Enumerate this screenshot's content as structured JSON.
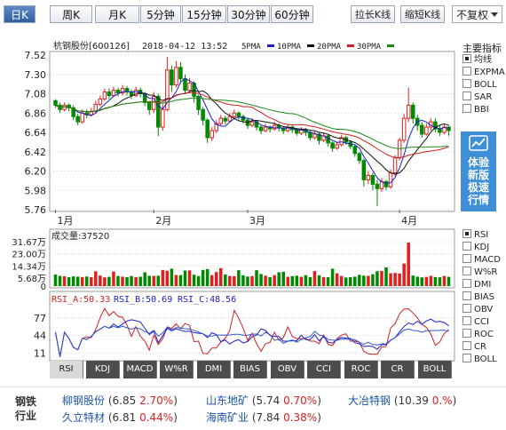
{
  "period_tabs": [
    {
      "label": "日K",
      "active": true
    },
    {
      "label": "周K",
      "active": false
    },
    {
      "label": "月K",
      "active": false
    },
    {
      "label": "5分钟",
      "active": false
    },
    {
      "label": "15分钟",
      "active": false
    },
    {
      "label": "30分钟",
      "active": false
    },
    {
      "label": "60分钟",
      "active": false
    }
  ],
  "tools": {
    "stretch": "拉长K线",
    "shrink": "缩短K线",
    "adjust": "不复权"
  },
  "header": {
    "name": "杭钢股份[600126]",
    "datetime": "2018-04-12 13:52",
    "ma": [
      {
        "label": "5PMA",
        "color": "#2a2a9a"
      },
      {
        "label": "10PMA",
        "color": "#2a2a9a"
      },
      {
        "label": "20PMA",
        "color": "#111111"
      },
      {
        "label": "30PMA",
        "color": "#c00000"
      }
    ]
  },
  "colors": {
    "up": "#e02020",
    "down": "#008a00",
    "ma5": "#1d1dcc",
    "ma10": "#111111",
    "ma20": "#d02020",
    "ma30": "#1a8a1a",
    "accent": "#3f8fd8"
  },
  "side": {
    "main_title": "主要指标",
    "main_items": [
      {
        "label": "均线",
        "checked": true
      },
      {
        "label": "EXPMA",
        "checked": false
      },
      {
        "label": "BOLL",
        "checked": false
      },
      {
        "label": "SAR",
        "checked": false
      },
      {
        "label": "BBI",
        "checked": false
      }
    ],
    "promo_lines": [
      "体验",
      "新版",
      "极速",
      "行情"
    ],
    "sub_items": [
      {
        "label": "RSI",
        "checked": true
      },
      {
        "label": "KDJ",
        "checked": false
      },
      {
        "label": "MACD",
        "checked": false
      },
      {
        "label": "W%R",
        "checked": false
      },
      {
        "label": "DMI",
        "checked": false
      },
      {
        "label": "BIAS",
        "checked": false
      },
      {
        "label": "OBV",
        "checked": false
      },
      {
        "label": "CCI",
        "checked": false
      },
      {
        "label": "ROC",
        "checked": false
      },
      {
        "label": "CR",
        "checked": false
      },
      {
        "label": "BOLL",
        "checked": false
      }
    ]
  },
  "indicator_tabs": [
    {
      "label": "RSI",
      "active": true
    },
    {
      "label": "KDJ",
      "active": false
    },
    {
      "label": "MACD",
      "active": false
    },
    {
      "label": "W%R",
      "active": false
    },
    {
      "label": "DMI",
      "active": false
    },
    {
      "label": "BIAS",
      "active": false
    },
    {
      "label": "OBV",
      "active": false
    },
    {
      "label": "CCI",
      "active": false
    },
    {
      "label": "ROC",
      "active": false
    },
    {
      "label": "CR",
      "active": false
    },
    {
      "label": "BOLL",
      "active": false
    }
  ],
  "industry": {
    "label": "钢铁行业",
    "peers": [
      {
        "name": "柳钢股份",
        "price": "6.85",
        "change": "2.70%"
      },
      {
        "name": "山东地矿",
        "price": "5.74",
        "change": "0.70%"
      },
      {
        "name": "大冶特钢",
        "price": "10.39",
        "change": "0.%"
      },
      {
        "name": "久立特材",
        "price": "6.81",
        "change": "0.44%"
      },
      {
        "name": "海南矿业",
        "price": "7.84",
        "change": "0.38%"
      }
    ]
  },
  "chart_data": {
    "type": "candlestick",
    "price_ticks": [
      "7.52",
      "7.30",
      "7.08",
      "6.86",
      "6.64",
      "6.42",
      "6.20",
      "5.98",
      "5.76"
    ],
    "price_range": [
      5.76,
      7.52
    ],
    "month_labels": [
      {
        "label": "1月",
        "index": 0
      },
      {
        "label": "2月",
        "index": 22
      },
      {
        "label": "3月",
        "index": 43
      },
      {
        "label": "4月",
        "index": 77
      }
    ],
    "candles": [
      [
        7.0,
        6.95,
        7.02,
        6.92
      ],
      [
        6.95,
        6.9,
        6.98,
        6.86
      ],
      [
        6.9,
        6.95,
        6.98,
        6.88
      ],
      [
        6.95,
        6.92,
        6.97,
        6.88
      ],
      [
        6.92,
        6.82,
        6.95,
        6.78
      ],
      [
        6.82,
        6.76,
        6.85,
        6.72
      ],
      [
        6.76,
        6.86,
        6.9,
        6.74
      ],
      [
        6.86,
        6.84,
        6.9,
        6.8
      ],
      [
        6.84,
        6.88,
        6.92,
        6.82
      ],
      [
        6.88,
        6.96,
        7.0,
        6.86
      ],
      [
        6.96,
        7.02,
        7.06,
        6.94
      ],
      [
        7.02,
        7.1,
        7.14,
        7.0
      ],
      [
        7.1,
        7.06,
        7.14,
        7.02
      ],
      [
        7.06,
        7.12,
        7.16,
        7.04
      ],
      [
        7.12,
        7.09,
        7.15,
        7.05
      ],
      [
        7.09,
        7.14,
        7.18,
        7.06
      ],
      [
        7.14,
        7.1,
        7.17,
        7.06
      ],
      [
        7.1,
        7.06,
        7.13,
        7.02
      ],
      [
        7.06,
        7.12,
        7.16,
        7.04
      ],
      [
        7.12,
        7.08,
        7.15,
        7.04
      ],
      [
        7.08,
        6.98,
        7.1,
        6.94
      ],
      [
        6.98,
        6.9,
        7.0,
        6.84
      ],
      [
        6.9,
        7.05,
        7.1,
        6.86
      ],
      [
        7.05,
        6.7,
        7.08,
        6.6
      ],
      [
        6.7,
        6.9,
        6.96,
        6.66
      ],
      [
        6.9,
        7.35,
        7.5,
        6.88
      ],
      [
        7.35,
        7.18,
        7.4,
        7.1
      ],
      [
        7.18,
        7.38,
        7.45,
        7.15
      ],
      [
        7.38,
        7.25,
        7.44,
        7.2
      ],
      [
        7.25,
        7.12,
        7.3,
        7.08
      ],
      [
        7.12,
        7.2,
        7.26,
        7.1
      ],
      [
        7.2,
        7.05,
        7.22,
        6.98
      ],
      [
        7.05,
        6.9,
        7.07,
        6.84
      ],
      [
        6.9,
        6.78,
        6.93,
        6.72
      ],
      [
        6.78,
        6.58,
        6.8,
        6.52
      ],
      [
        6.58,
        6.66,
        6.7,
        6.54
      ],
      [
        6.66,
        6.74,
        6.78,
        6.63
      ],
      [
        6.74,
        6.8,
        6.84,
        6.72
      ],
      [
        6.8,
        6.77,
        6.83,
        6.73
      ],
      [
        6.77,
        6.82,
        6.86,
        6.75
      ],
      [
        6.82,
        6.86,
        6.9,
        6.8
      ],
      [
        6.86,
        6.82,
        6.88,
        6.78
      ],
      [
        6.82,
        6.78,
        6.84,
        6.74
      ],
      [
        6.78,
        6.72,
        6.8,
        6.68
      ],
      [
        6.72,
        6.76,
        6.8,
        6.7
      ],
      [
        6.76,
        6.7,
        6.78,
        6.66
      ],
      [
        6.7,
        6.66,
        6.72,
        6.62
      ],
      [
        6.66,
        6.7,
        6.74,
        6.64
      ],
      [
        6.7,
        6.68,
        6.72,
        6.64
      ],
      [
        6.68,
        6.72,
        6.76,
        6.66
      ],
      [
        6.72,
        6.69,
        6.74,
        6.65
      ],
      [
        6.69,
        6.66,
        6.71,
        6.62
      ],
      [
        6.66,
        6.7,
        6.73,
        6.64
      ],
      [
        6.7,
        6.67,
        6.72,
        6.63
      ],
      [
        6.67,
        6.63,
        6.69,
        6.6
      ],
      [
        6.63,
        6.67,
        6.7,
        6.61
      ],
      [
        6.67,
        6.64,
        6.69,
        6.6
      ],
      [
        6.64,
        6.58,
        6.66,
        6.55
      ],
      [
        6.58,
        6.62,
        6.65,
        6.56
      ],
      [
        6.62,
        6.55,
        6.64,
        6.5
      ],
      [
        6.55,
        6.6,
        6.63,
        6.53
      ],
      [
        6.6,
        6.52,
        6.62,
        6.48
      ],
      [
        6.52,
        6.46,
        6.54,
        6.42
      ],
      [
        6.46,
        6.5,
        6.53,
        6.44
      ],
      [
        6.5,
        6.58,
        6.61,
        6.48
      ],
      [
        6.58,
        6.53,
        6.6,
        6.5
      ],
      [
        6.53,
        6.48,
        6.55,
        6.45
      ],
      [
        6.48,
        6.4,
        6.5,
        6.36
      ],
      [
        6.4,
        6.32,
        6.42,
        6.28
      ],
      [
        6.32,
        6.1,
        6.34,
        6.02
      ],
      [
        6.1,
        6.15,
        6.2,
        6.05
      ],
      [
        6.15,
        6.05,
        6.18,
        5.98
      ],
      [
        6.05,
        6.0,
        6.1,
        5.8
      ],
      [
        6.0,
        6.08,
        6.12,
        5.96
      ],
      [
        6.08,
        6.02,
        6.1,
        5.98
      ],
      [
        6.02,
        6.18,
        6.22,
        6.0
      ],
      [
        6.18,
        6.35,
        6.38,
        6.14
      ],
      [
        6.35,
        6.55,
        6.58,
        6.32
      ],
      [
        6.55,
        6.8,
        6.85,
        6.52
      ],
      [
        6.8,
        6.95,
        7.15,
        6.76
      ],
      [
        6.95,
        6.8,
        6.98,
        6.74
      ],
      [
        6.8,
        6.72,
        6.84,
        6.66
      ],
      [
        6.72,
        6.62,
        6.76,
        6.58
      ],
      [
        6.62,
        6.7,
        6.74,
        6.6
      ],
      [
        6.7,
        6.76,
        6.8,
        6.66
      ],
      [
        6.76,
        6.68,
        6.8,
        6.64
      ],
      [
        6.68,
        6.64,
        6.72,
        6.6
      ],
      [
        6.64,
        6.7,
        6.74,
        6.62
      ],
      [
        6.7,
        6.66,
        6.72,
        6.6
      ]
    ],
    "volume": {
      "label": "成交量:37520",
      "ticks": [
        "31.67万",
        "23.00万",
        "14.34万",
        "5.68万",
        "0"
      ],
      "max": 316700,
      "values": [
        82000,
        73000,
        70000,
        63000,
        69000,
        67000,
        64000,
        68000,
        63000,
        105000,
        75000,
        62000,
        66000,
        104000,
        72000,
        67000,
        64000,
        72000,
        64000,
        67000,
        98000,
        73000,
        72000,
        74000,
        115000,
        109000,
        124000,
        79000,
        78000,
        111000,
        112000,
        81000,
        71000,
        115000,
        121000,
        78000,
        100000,
        128000,
        83000,
        72000,
        70000,
        113000,
        77000,
        68000,
        71000,
        113000,
        86000,
        74000,
        63000,
        78000,
        98000,
        102000,
        66000,
        71000,
        74000,
        66000,
        78000,
        64000,
        107000,
        77000,
        64000,
        63000,
        124000,
        91000,
        72000,
        61000,
        63000,
        67000,
        80000,
        74000,
        73000,
        84000,
        106000,
        108000,
        133000,
        91000,
        94000,
        90000,
        161000,
        310000,
        75000,
        67000,
        62000,
        65000,
        73000,
        64000,
        62000,
        72000,
        66000
      ]
    },
    "rsi": {
      "label_a": "RSI_A:50.33",
      "label_b": "RSI_B:50.69",
      "label_c": "RSI_C:48.56",
      "ticks": [
        "77",
        "44",
        "11"
      ],
      "range": [
        0,
        100
      ]
    }
  }
}
